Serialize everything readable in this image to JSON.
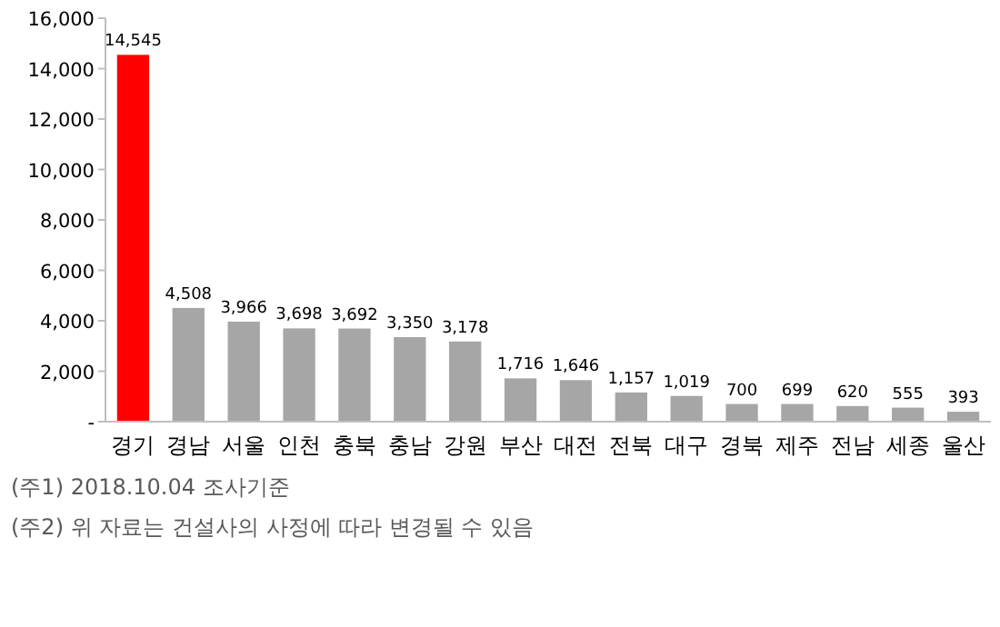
{
  "chart_data": {
    "type": "bar",
    "categories": [
      "경기",
      "경남",
      "서울",
      "인천",
      "충북",
      "충남",
      "강원",
      "부산",
      "대전",
      "전북",
      "대구",
      "경북",
      "제주",
      "전남",
      "세종",
      "울산"
    ],
    "values": [
      14545,
      4508,
      3966,
      3698,
      3692,
      3350,
      3178,
      1716,
      1646,
      1157,
      1019,
      700,
      699,
      620,
      555,
      393
    ],
    "colors": [
      "#ff0000",
      "#a6a6a6",
      "#a6a6a6",
      "#a6a6a6",
      "#a6a6a6",
      "#a6a6a6",
      "#a6a6a6",
      "#a6a6a6",
      "#a6a6a6",
      "#a6a6a6",
      "#a6a6a6",
      "#a6a6a6",
      "#a6a6a6",
      "#a6a6a6",
      "#a6a6a6",
      "#a6a6a6"
    ],
    "ylim": [
      0,
      16000
    ],
    "yticks": [
      {
        "value": 0,
        "label": "-"
      },
      {
        "value": 2000,
        "label": "2,000"
      },
      {
        "value": 4000,
        "label": "4,000"
      },
      {
        "value": 6000,
        "label": "6,000"
      },
      {
        "value": 8000,
        "label": "8,000"
      },
      {
        "value": 10000,
        "label": "10,000"
      },
      {
        "value": 12000,
        "label": "12,000"
      },
      {
        "value": 14000,
        "label": "14,000"
      },
      {
        "value": 16000,
        "label": "16,000"
      }
    ],
    "value_labels": [
      "14,545",
      "4,508",
      "3,966",
      "3,698",
      "3,692",
      "3,350",
      "3,178",
      "1,716",
      "1,646",
      "1,157",
      "1,019",
      "700",
      "699",
      "620",
      "555",
      "393"
    ],
    "annotations": [
      "(주1) 2018.10.04 조사기준",
      "(주2) 위 자료는 건설사의 사정에 따라 변경될 수 있음"
    ]
  }
}
